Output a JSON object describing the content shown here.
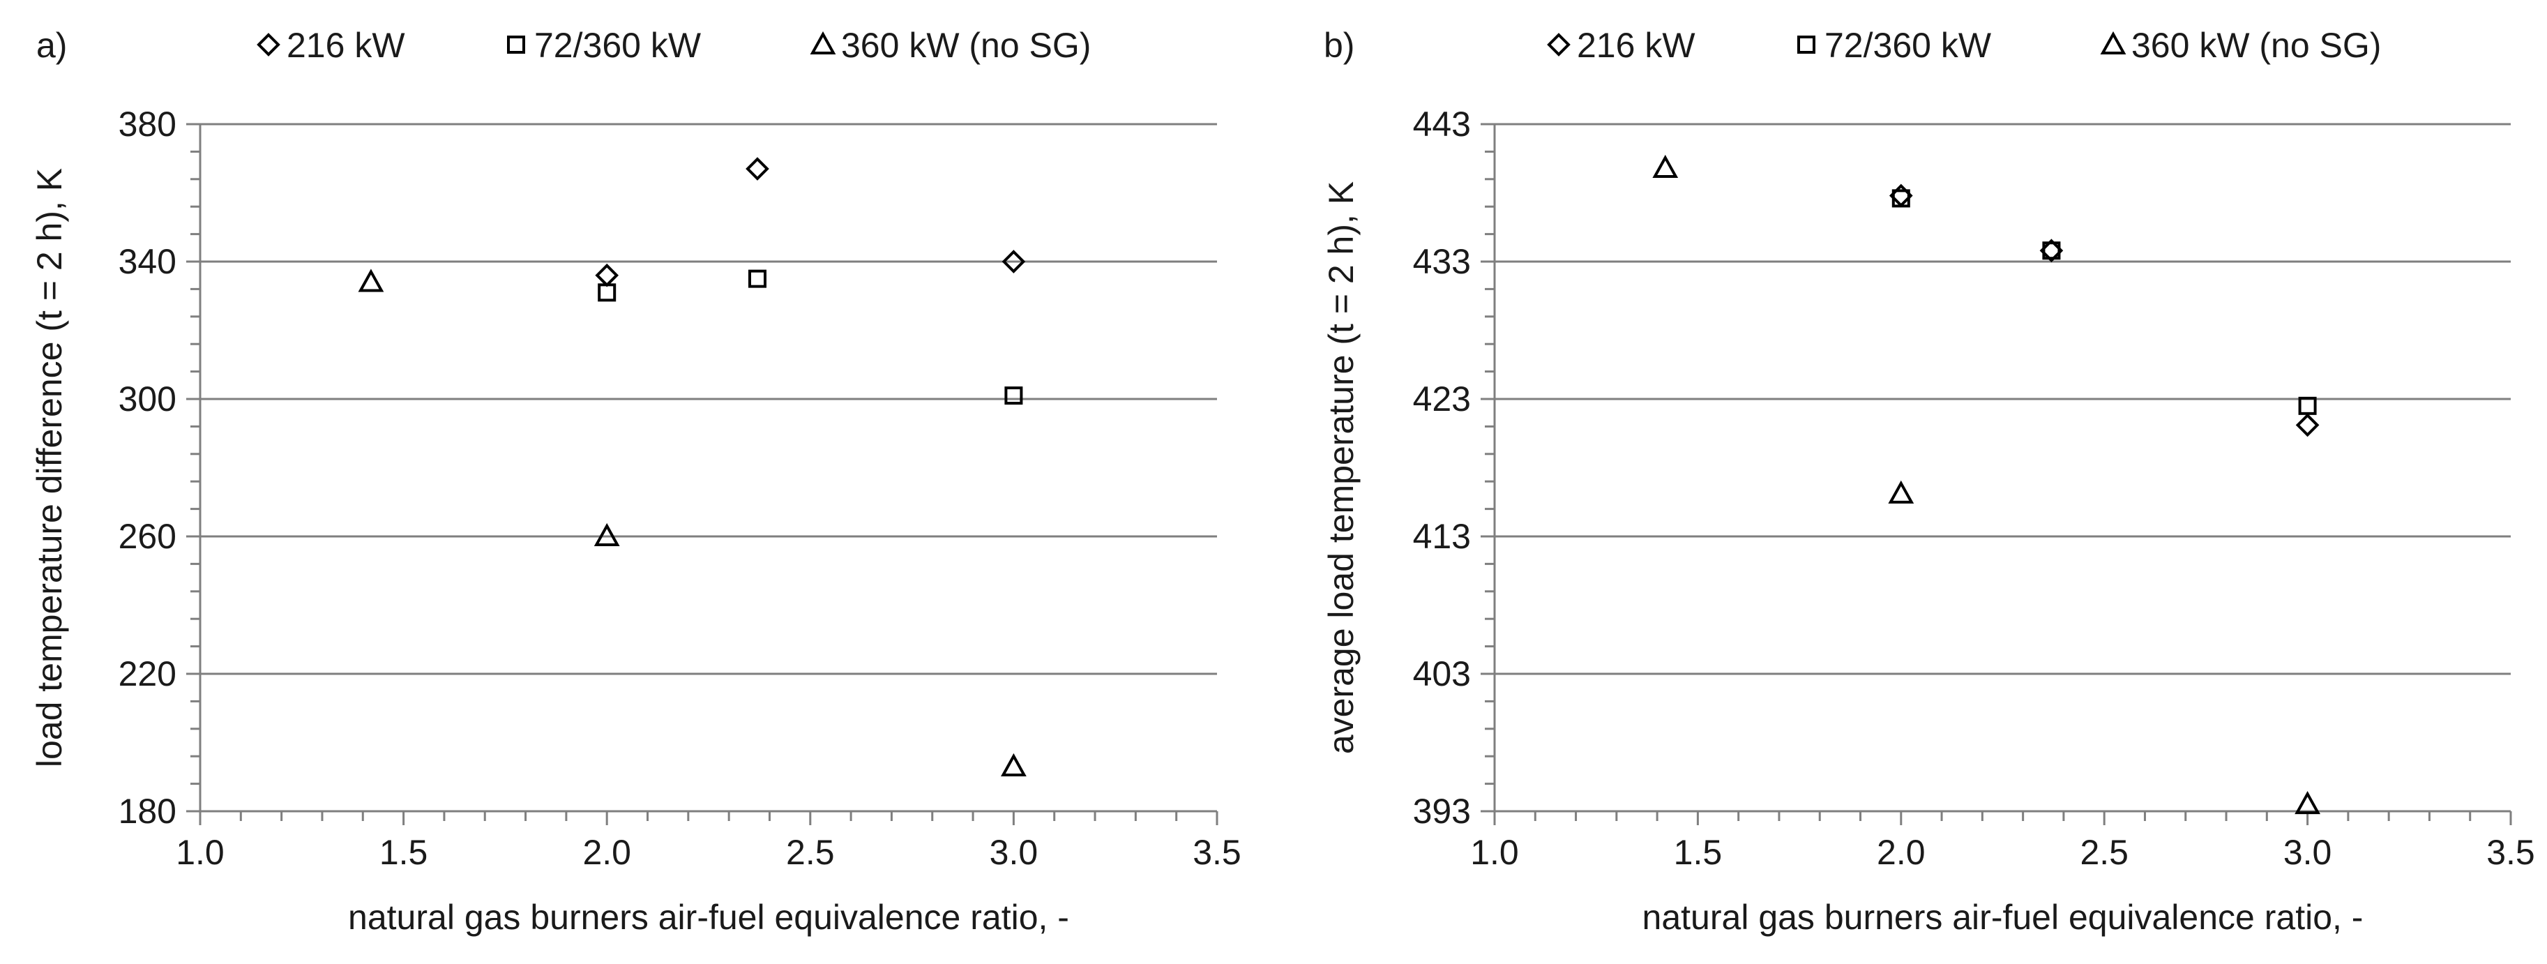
{
  "chart_data": [
    {
      "panel_label": "a)",
      "type": "scatter",
      "legend_position": "top",
      "xlabel": "natural gas burners air-fuel equivalence ratio, -",
      "ylabel": "load temperature difference (t = 2 h), K",
      "xlim": [
        1.0,
        3.5
      ],
      "ylim": [
        180,
        380
      ],
      "xticks": [
        "1.0",
        "1.5",
        "2.0",
        "2.5",
        "3.0",
        "3.5"
      ],
      "xtick_values": [
        1.0,
        1.5,
        2.0,
        2.5,
        3.0,
        3.5
      ],
      "yticks": [
        "180",
        "220",
        "260",
        "300",
        "340",
        "380"
      ],
      "ytick_values": [
        180,
        220,
        260,
        300,
        340,
        380
      ],
      "grid": true,
      "series": [
        {
          "name": "216 kW",
          "marker": "diamond",
          "x": [
            2.0,
            2.37,
            3.0
          ],
          "y": [
            336,
            367,
            340
          ]
        },
        {
          "name": "72/360 kW",
          "marker": "square",
          "x": [
            2.0,
            2.37,
            3.0
          ],
          "y": [
            331,
            335,
            301
          ]
        },
        {
          "name": "360 kW (no SG)",
          "marker": "triangle",
          "x": [
            1.42,
            2.0,
            3.0
          ],
          "y": [
            334,
            260,
            193
          ]
        }
      ]
    },
    {
      "panel_label": "b)",
      "type": "scatter",
      "legend_position": "top",
      "xlabel": "natural gas burners air-fuel equivalence ratio, -",
      "ylabel": "average load temperature (t = 2 h), K",
      "xlim": [
        1.0,
        3.5
      ],
      "ylim": [
        393,
        443
      ],
      "xticks": [
        "1.0",
        "1.5",
        "2.0",
        "2.5",
        "3.0",
        "3.5"
      ],
      "xtick_values": [
        1.0,
        1.5,
        2.0,
        2.5,
        3.0,
        3.5
      ],
      "yticks": [
        "393",
        "403",
        "413",
        "423",
        "433",
        "443"
      ],
      "ytick_values": [
        393,
        403,
        413,
        423,
        433,
        443
      ],
      "grid": true,
      "series": [
        {
          "name": "216 kW",
          "marker": "diamond",
          "x": [
            2.0,
            2.37,
            3.0
          ],
          "y": [
            437.8,
            433.8,
            421.1
          ]
        },
        {
          "name": "72/360 kW",
          "marker": "square",
          "x": [
            2.0,
            2.37,
            3.0
          ],
          "y": [
            437.6,
            433.8,
            422.5
          ]
        },
        {
          "name": "360 kW (no SG)",
          "marker": "triangle",
          "x": [
            1.42,
            2.0,
            3.0
          ],
          "y": [
            439.8,
            416.1,
            393.5
          ]
        }
      ]
    }
  ]
}
